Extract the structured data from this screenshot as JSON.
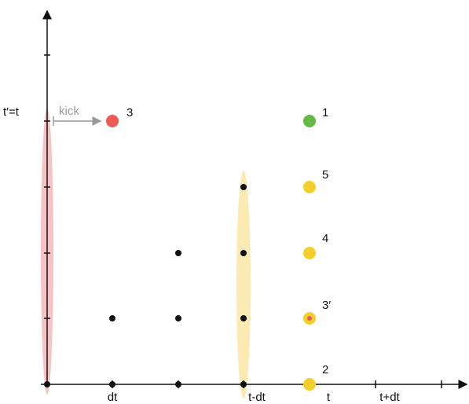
{
  "colors": {
    "axis": "#111111",
    "red_ellipse": "#f4aeb0",
    "yellow_ellipse": "#fbe6a6",
    "red_node": "#ec5a56",
    "green_node": "#63b946",
    "yellow_node": "#f2cf2b",
    "kick_arrow": "#9a9a9a"
  },
  "x_axis_labels": [
    "dt",
    "t-dt",
    "t",
    "t+dt"
  ],
  "y_axis_label": "t′=t",
  "kick_label": "kick",
  "node_labels": {
    "red_3": "3",
    "green_1": "1",
    "yellow_5": "5",
    "yellow_4": "4",
    "yellow_3_prime": "3′",
    "yellow_2": "2"
  }
}
